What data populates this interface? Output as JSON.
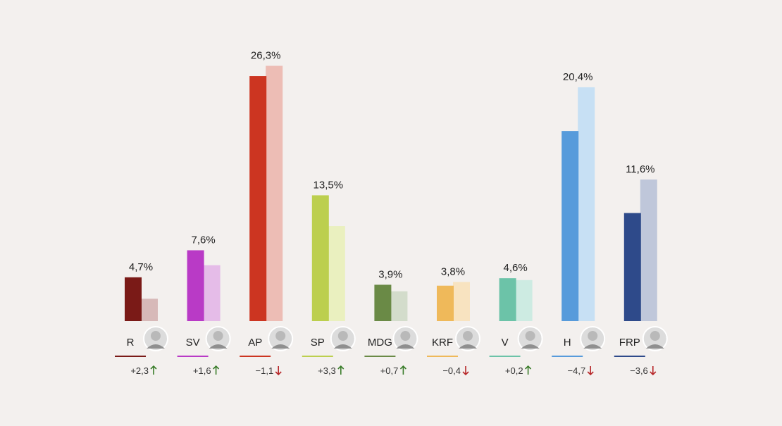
{
  "chart_data": {
    "type": "bar",
    "categories": [
      "R",
      "SV",
      "AP",
      "SP",
      "MDG",
      "KRF",
      "V",
      "H",
      "FRP"
    ],
    "series": [
      {
        "values": [
          4.7,
          7.6,
          26.3,
          13.5,
          3.9,
          3.8,
          4.6,
          20.4,
          11.6
        ]
      },
      {
        "values": [
          2.4,
          6.0,
          27.4,
          10.2,
          3.2,
          4.2,
          4.4,
          25.1,
          15.2
        ]
      }
    ],
    "value_labels": [
      "4,7%",
      "7,6%",
      "26,3%",
      "13,5%",
      "3,9%",
      "3,8%",
      "4,6%",
      "20,4%",
      "11,6%"
    ],
    "changes": [
      "+2,3",
      "+1,6",
      "−1,1",
      "+3,3",
      "+0,7",
      "−0,4",
      "+0,2",
      "−4,7",
      "−3,6"
    ],
    "change_direction": [
      "up",
      "up",
      "down",
      "up",
      "up",
      "down",
      "up",
      "down",
      "down"
    ],
    "colors_current": [
      "#7a1a17",
      "#b93ac6",
      "#cc3521",
      "#bccf4e",
      "#6a8a46",
      "#efb95a",
      "#6cc3a8",
      "#579bdb",
      "#2e4a8a"
    ],
    "colors_previous": [
      "#d7b9b8",
      "#e5bce8",
      "#edbdb5",
      "#eaf0bf",
      "#d3dccb",
      "#f8e3c0",
      "#cdebe2",
      "#c7e0f4",
      "#bfc7da"
    ],
    "up_color": "#3a7d2a",
    "down_color": "#b7282a",
    "title": "",
    "xlabel": "",
    "ylabel": "",
    "ylim": [
      0,
      28
    ],
    "grid": false,
    "legend": "none"
  }
}
